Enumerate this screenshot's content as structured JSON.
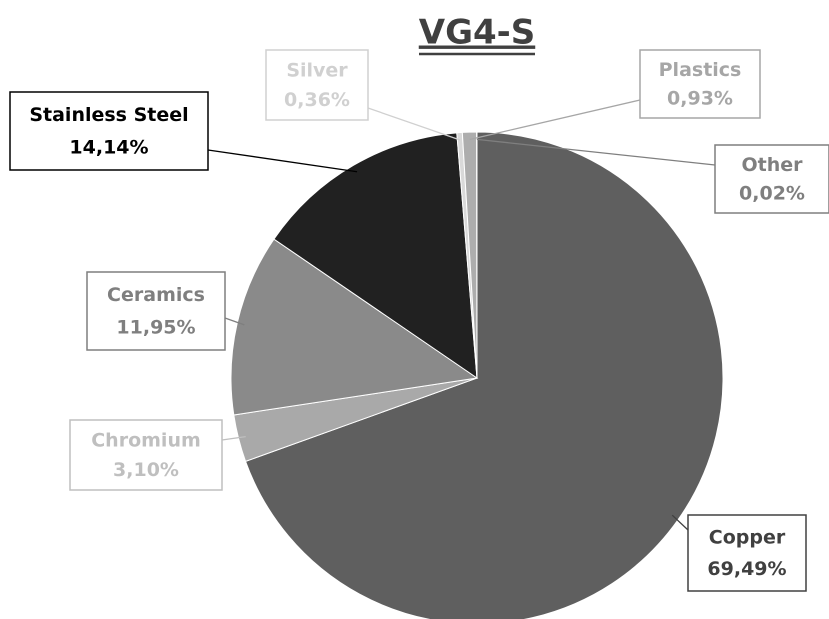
{
  "chart_data": {
    "type": "pie",
    "title": "VG4-S",
    "categories": [
      "Copper",
      "Chromium",
      "Ceramics",
      "Stainless Steel",
      "Silver",
      "Plastics",
      "Other"
    ],
    "values": [
      69.49,
      3.1,
      11.95,
      14.14,
      0.36,
      0.93,
      0.02
    ],
    "value_labels": [
      "69,49%",
      "3,10%",
      "11,95%",
      "14,14%",
      "0,36%",
      "0,93%",
      "0,02%"
    ],
    "colors": [
      "#5f5f5f",
      "#a9a9a9",
      "#8a8a8a",
      "#212121",
      "#d9d9d9",
      "#adadad",
      "#7a7a7a"
    ],
    "label_colors": [
      "#404040",
      "#bfbfbf",
      "#7f7f7f",
      "#000000",
      "#d0d0d0",
      "#a6a6a6",
      "#7f7f7f"
    ]
  }
}
